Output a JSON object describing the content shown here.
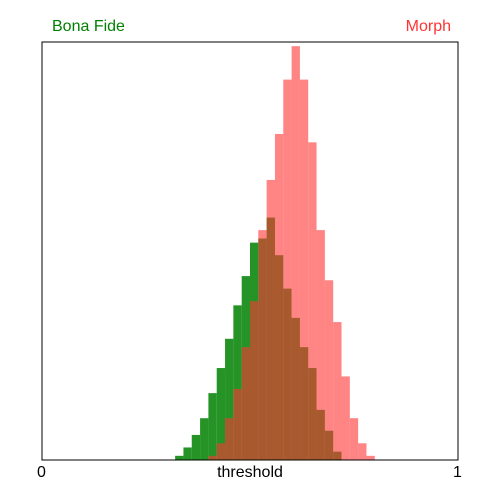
{
  "chart_data": {
    "type": "histogram",
    "xlabel": "threshold",
    "xlim": [
      0,
      1
    ],
    "x_ticks": [
      "0",
      "1"
    ],
    "ylim": [
      0,
      1
    ],
    "grid": false,
    "legend_placement": "top",
    "bin_width": 0.02,
    "x": [
      0.01,
      0.03,
      0.05,
      0.07,
      0.09,
      0.11,
      0.13,
      0.15,
      0.17,
      0.19,
      0.21,
      0.23,
      0.25,
      0.27,
      0.29,
      0.31,
      0.33,
      0.35,
      0.37,
      0.39,
      0.41,
      0.43,
      0.45,
      0.47,
      0.49,
      0.51,
      0.53,
      0.55,
      0.57,
      0.59,
      0.61,
      0.63,
      0.65,
      0.67,
      0.69,
      0.71,
      0.73,
      0.75,
      0.77,
      0.79,
      0.81,
      0.83,
      0.85,
      0.87,
      0.89,
      0.91,
      0.93,
      0.95,
      0.97,
      0.99
    ],
    "series": [
      {
        "name": "Bona Fide",
        "color": "#008000",
        "values": [
          0,
          0,
          0,
          0,
          0,
          0,
          0,
          0,
          0,
          0,
          0,
          0,
          0,
          0,
          0,
          0,
          0.01,
          0.03,
          0.06,
          0.1,
          0.16,
          0.22,
          0.29,
          0.37,
          0.44,
          0.52,
          0.53,
          0.58,
          0.49,
          0.41,
          0.34,
          0.27,
          0.22,
          0.12,
          0.07,
          0.02,
          0,
          0,
          0,
          0,
          0,
          0,
          0,
          0,
          0,
          0,
          0,
          0,
          0,
          0
        ]
      },
      {
        "name": "Morph",
        "color": "#FF3333",
        "values": [
          0,
          0,
          0,
          0,
          0,
          0,
          0,
          0,
          0,
          0,
          0,
          0,
          0,
          0,
          0,
          0,
          0,
          0,
          0,
          0,
          0.01,
          0.04,
          0.1,
          0.17,
          0.27,
          0.38,
          0.55,
          0.67,
          0.78,
          0.91,
          0.99,
          0.91,
          0.76,
          0.55,
          0.43,
          0.33,
          0.2,
          0.1,
          0.04,
          0.01,
          0,
          0,
          0,
          0,
          0,
          0,
          0,
          0,
          0,
          0
        ]
      }
    ]
  }
}
